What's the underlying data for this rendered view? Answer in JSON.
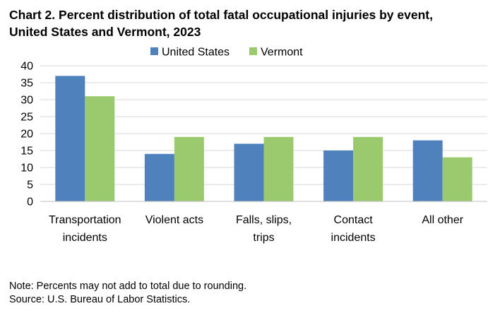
{
  "chart_data": {
    "type": "bar",
    "title_lines": [
      "Chart 2. Percent distribution of total fatal occupational injuries by event,",
      "United States and Vermont, 2023"
    ],
    "categories": [
      [
        "Transportation",
        "incidents"
      ],
      [
        "Violent acts"
      ],
      [
        "Falls, slips,",
        "trips"
      ],
      [
        "Contact",
        "incidents"
      ],
      [
        "All other"
      ]
    ],
    "series": [
      {
        "name": "United States",
        "color": "#4f81bd",
        "values": [
          37,
          14,
          17,
          15,
          18
        ]
      },
      {
        "name": "Vermont",
        "color": "#9bca6e",
        "values": [
          31,
          19,
          19,
          19,
          13
        ]
      }
    ],
    "ylim": [
      0,
      40
    ],
    "yticks": [
      "0",
      "5",
      "10",
      "15",
      "20",
      "25",
      "30",
      "35",
      "40"
    ],
    "grid": true,
    "legend_position": "top-center",
    "xlabel": "",
    "ylabel": ""
  },
  "notes": {
    "note": "Note: Percents may not add to total due to rounding.",
    "source": "Source: U.S. Bureau of Labor Statistics."
  }
}
